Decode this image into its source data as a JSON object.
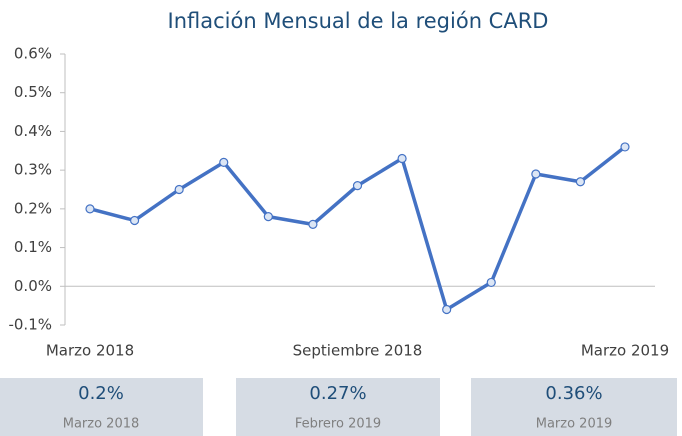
{
  "chart_data": {
    "type": "line",
    "title": "Inflación Mensual de la región CARD",
    "categories": [
      "Marzo 2018",
      null,
      null,
      null,
      null,
      null,
      "Septiembre 2018",
      null,
      null,
      null,
      null,
      null,
      "Marzo 2019"
    ],
    "series": [
      {
        "color": "#4472c4",
        "values": [
          0.2,
          0.17,
          0.25,
          0.32,
          0.18,
          0.16,
          0.26,
          0.33,
          -0.06,
          0.01,
          0.29,
          0.27,
          0.36
        ]
      }
    ],
    "ylim": [
      -0.1,
      0.6
    ],
    "yticks": [
      {
        "value": -0.1,
        "label": "-0.1%"
      },
      {
        "value": 0,
        "label": "0.0%"
      },
      {
        "value": 0.1,
        "label": "0.1%"
      },
      {
        "value": 0.2,
        "label": "0.2%"
      },
      {
        "value": 0.3,
        "label": "0.3%"
      },
      {
        "value": 0.4,
        "label": "0.4%"
      },
      {
        "value": 0.5,
        "label": "0.5%"
      },
      {
        "value": 0.6,
        "label": "0.6%"
      }
    ]
  },
  "cards": [
    {
      "value": "0.2%",
      "label": "Marzo 2018"
    },
    {
      "value": "0.27%",
      "label": "Febrero 2019"
    },
    {
      "value": "0.36%",
      "label": "Marzo 2019"
    }
  ]
}
